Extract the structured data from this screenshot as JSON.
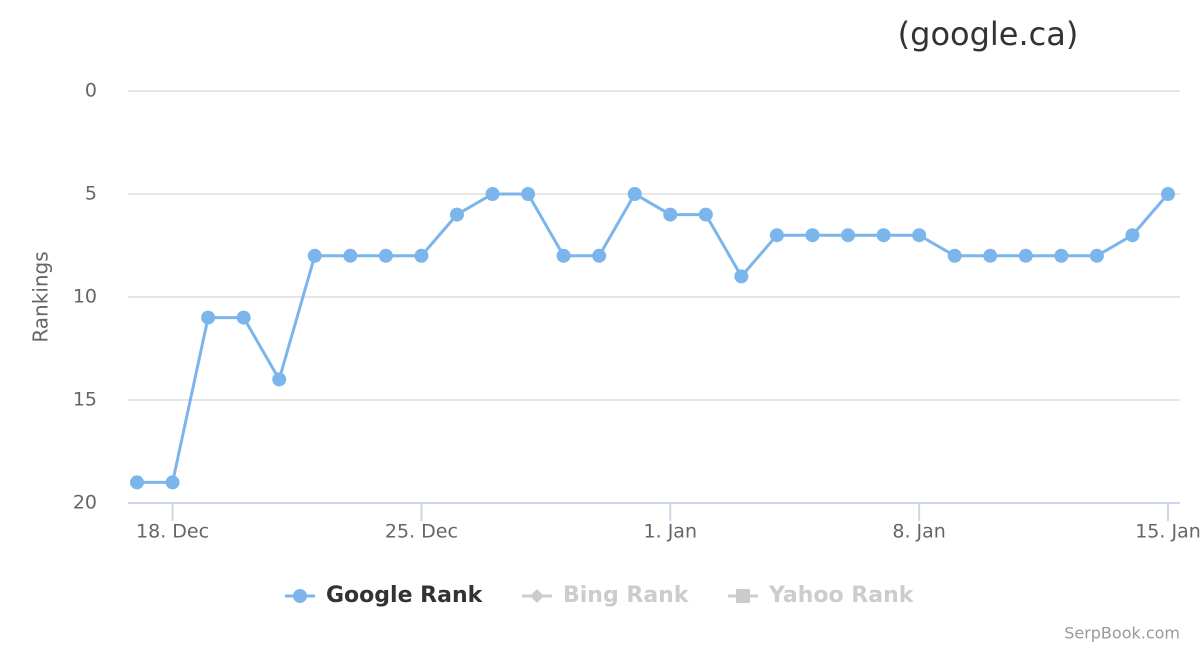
{
  "chart_data": {
    "type": "line",
    "title": "(google.ca)",
    "y_label": "Rankings",
    "credits": "SerpBook.com",
    "x": [
      null,
      "18. Dec",
      null,
      null,
      null,
      null,
      null,
      null,
      "25. Dec",
      null,
      null,
      null,
      null,
      null,
      null,
      "1. Jan",
      null,
      null,
      null,
      null,
      null,
      null,
      "8. Jan",
      null,
      null,
      null,
      null,
      null,
      null,
      "15. Jan"
    ],
    "series": [
      {
        "name": "Google Rank",
        "color": "#7cb5ec",
        "marker": "circle",
        "visible": true,
        "values": [
          19,
          19,
          11,
          11,
          14,
          8,
          8,
          8,
          8,
          6,
          5,
          5,
          8,
          8,
          5,
          6,
          6,
          9,
          7,
          7,
          7,
          7,
          7,
          8,
          8,
          8,
          8,
          8,
          7,
          5
        ]
      },
      {
        "name": "Bing Rank",
        "color": "#cccccc",
        "marker": "diamond",
        "visible": false
      },
      {
        "name": "Yahoo Rank",
        "color": "#cccccc",
        "marker": "square",
        "visible": false
      }
    ],
    "ylim": [
      0,
      20
    ],
    "yticks": [
      0,
      5,
      10,
      15,
      20
    ],
    "y_reversed": true,
    "grid": true
  }
}
